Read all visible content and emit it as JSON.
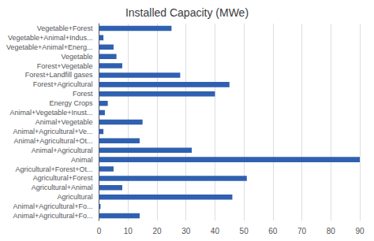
{
  "chart_data": {
    "type": "bar",
    "orientation": "horizontal",
    "title": "Installed Capacity (MWe)",
    "categories": [
      "Vegetable+Forest",
      "Vegetable+Animal+Indus...",
      "Vegetable+Animal+Energ...",
      "Vegetable",
      "Forest+Vegetable",
      "Forest+Landfill gases",
      "Forest+Agricultural",
      "Forest",
      "Energy Crops",
      "Animal+Vegetable+Inust...",
      "Animal+Vegetable",
      "Animal+Agricultural+Ve...",
      "Animal+Agricultural+Ot...",
      "Animal+Agricultural",
      "Animal",
      "Agricultural+Forest+Ot...",
      "Agricultural+Forest",
      "Agricultural+Animal",
      "Agricultural",
      "Animal+Agricultural+Fo...",
      "Animal+Agricultural+Fo..."
    ],
    "values": [
      25,
      1.5,
      5,
      6,
      8,
      28,
      45,
      40,
      3,
      2,
      15,
      1.5,
      14,
      32,
      90,
      5,
      51,
      8,
      46,
      0.5,
      14
    ],
    "color": "#3060b0",
    "xlim": [
      0,
      90
    ],
    "xticks": [
      0,
      10,
      20,
      30,
      40,
      50,
      60,
      70,
      80,
      90
    ],
    "grid": true
  }
}
